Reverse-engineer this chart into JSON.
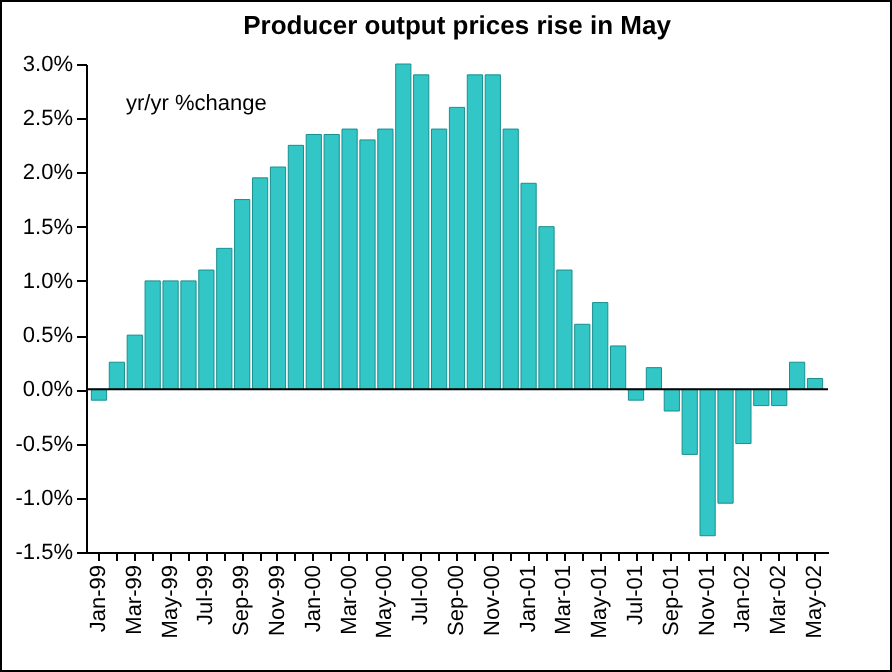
{
  "chart_data": {
    "type": "bar",
    "title": "Producer output prices rise in May",
    "annotations": [
      "yr/yr %change"
    ],
    "categories": [
      "Jan-99",
      null,
      "Mar-99",
      null,
      "May-99",
      null,
      "Jul-99",
      null,
      "Sep-99",
      null,
      "Nov-99",
      null,
      "Jan-00",
      null,
      "Mar-00",
      null,
      "May-00",
      null,
      "Jul-00",
      null,
      "Sep-00",
      null,
      "Nov-00",
      null,
      "Jan-01",
      null,
      "Mar-01",
      null,
      "May-01",
      null,
      "Jul-01",
      null,
      "Sep-01",
      null,
      "Nov-01",
      null,
      "Jan-02",
      null,
      "Mar-02",
      null,
      "May-02"
    ],
    "values": [
      -0.1,
      0.25,
      0.5,
      1.0,
      1.0,
      1.0,
      1.1,
      1.3,
      1.75,
      1.95,
      2.05,
      2.25,
      2.35,
      2.35,
      2.4,
      2.3,
      2.4,
      3.0,
      2.9,
      2.4,
      2.6,
      2.9,
      2.9,
      2.4,
      1.9,
      1.5,
      1.1,
      0.6,
      0.8,
      0.4,
      -0.1,
      0.2,
      -0.2,
      -0.6,
      -1.35,
      -1.05,
      -0.5,
      -0.15,
      -0.15,
      0.25,
      0.1
    ],
    "color": "#33c6c6",
    "ylim": [
      -1.5,
      3.0
    ],
    "yticks": [
      {
        "value": -1.5,
        "label": "-1.5%"
      },
      {
        "value": -1.0,
        "label": "-1.0%"
      },
      {
        "value": -0.5,
        "label": "-0.5%"
      },
      {
        "value": 0,
        "label": "0.0%"
      },
      {
        "value": 0.5,
        "label": "0.5%"
      },
      {
        "value": 1.0,
        "label": "1.0%"
      },
      {
        "value": 1.5,
        "label": "1.5%"
      },
      {
        "value": 2.0,
        "label": "2.0%"
      },
      {
        "value": 2.5,
        "label": "2.5%"
      },
      {
        "value": 3.0,
        "label": "3.0%"
      }
    ],
    "ref_lines": [
      {
        "axis": "y",
        "value": 0,
        "color": "#000000"
      }
    ]
  }
}
